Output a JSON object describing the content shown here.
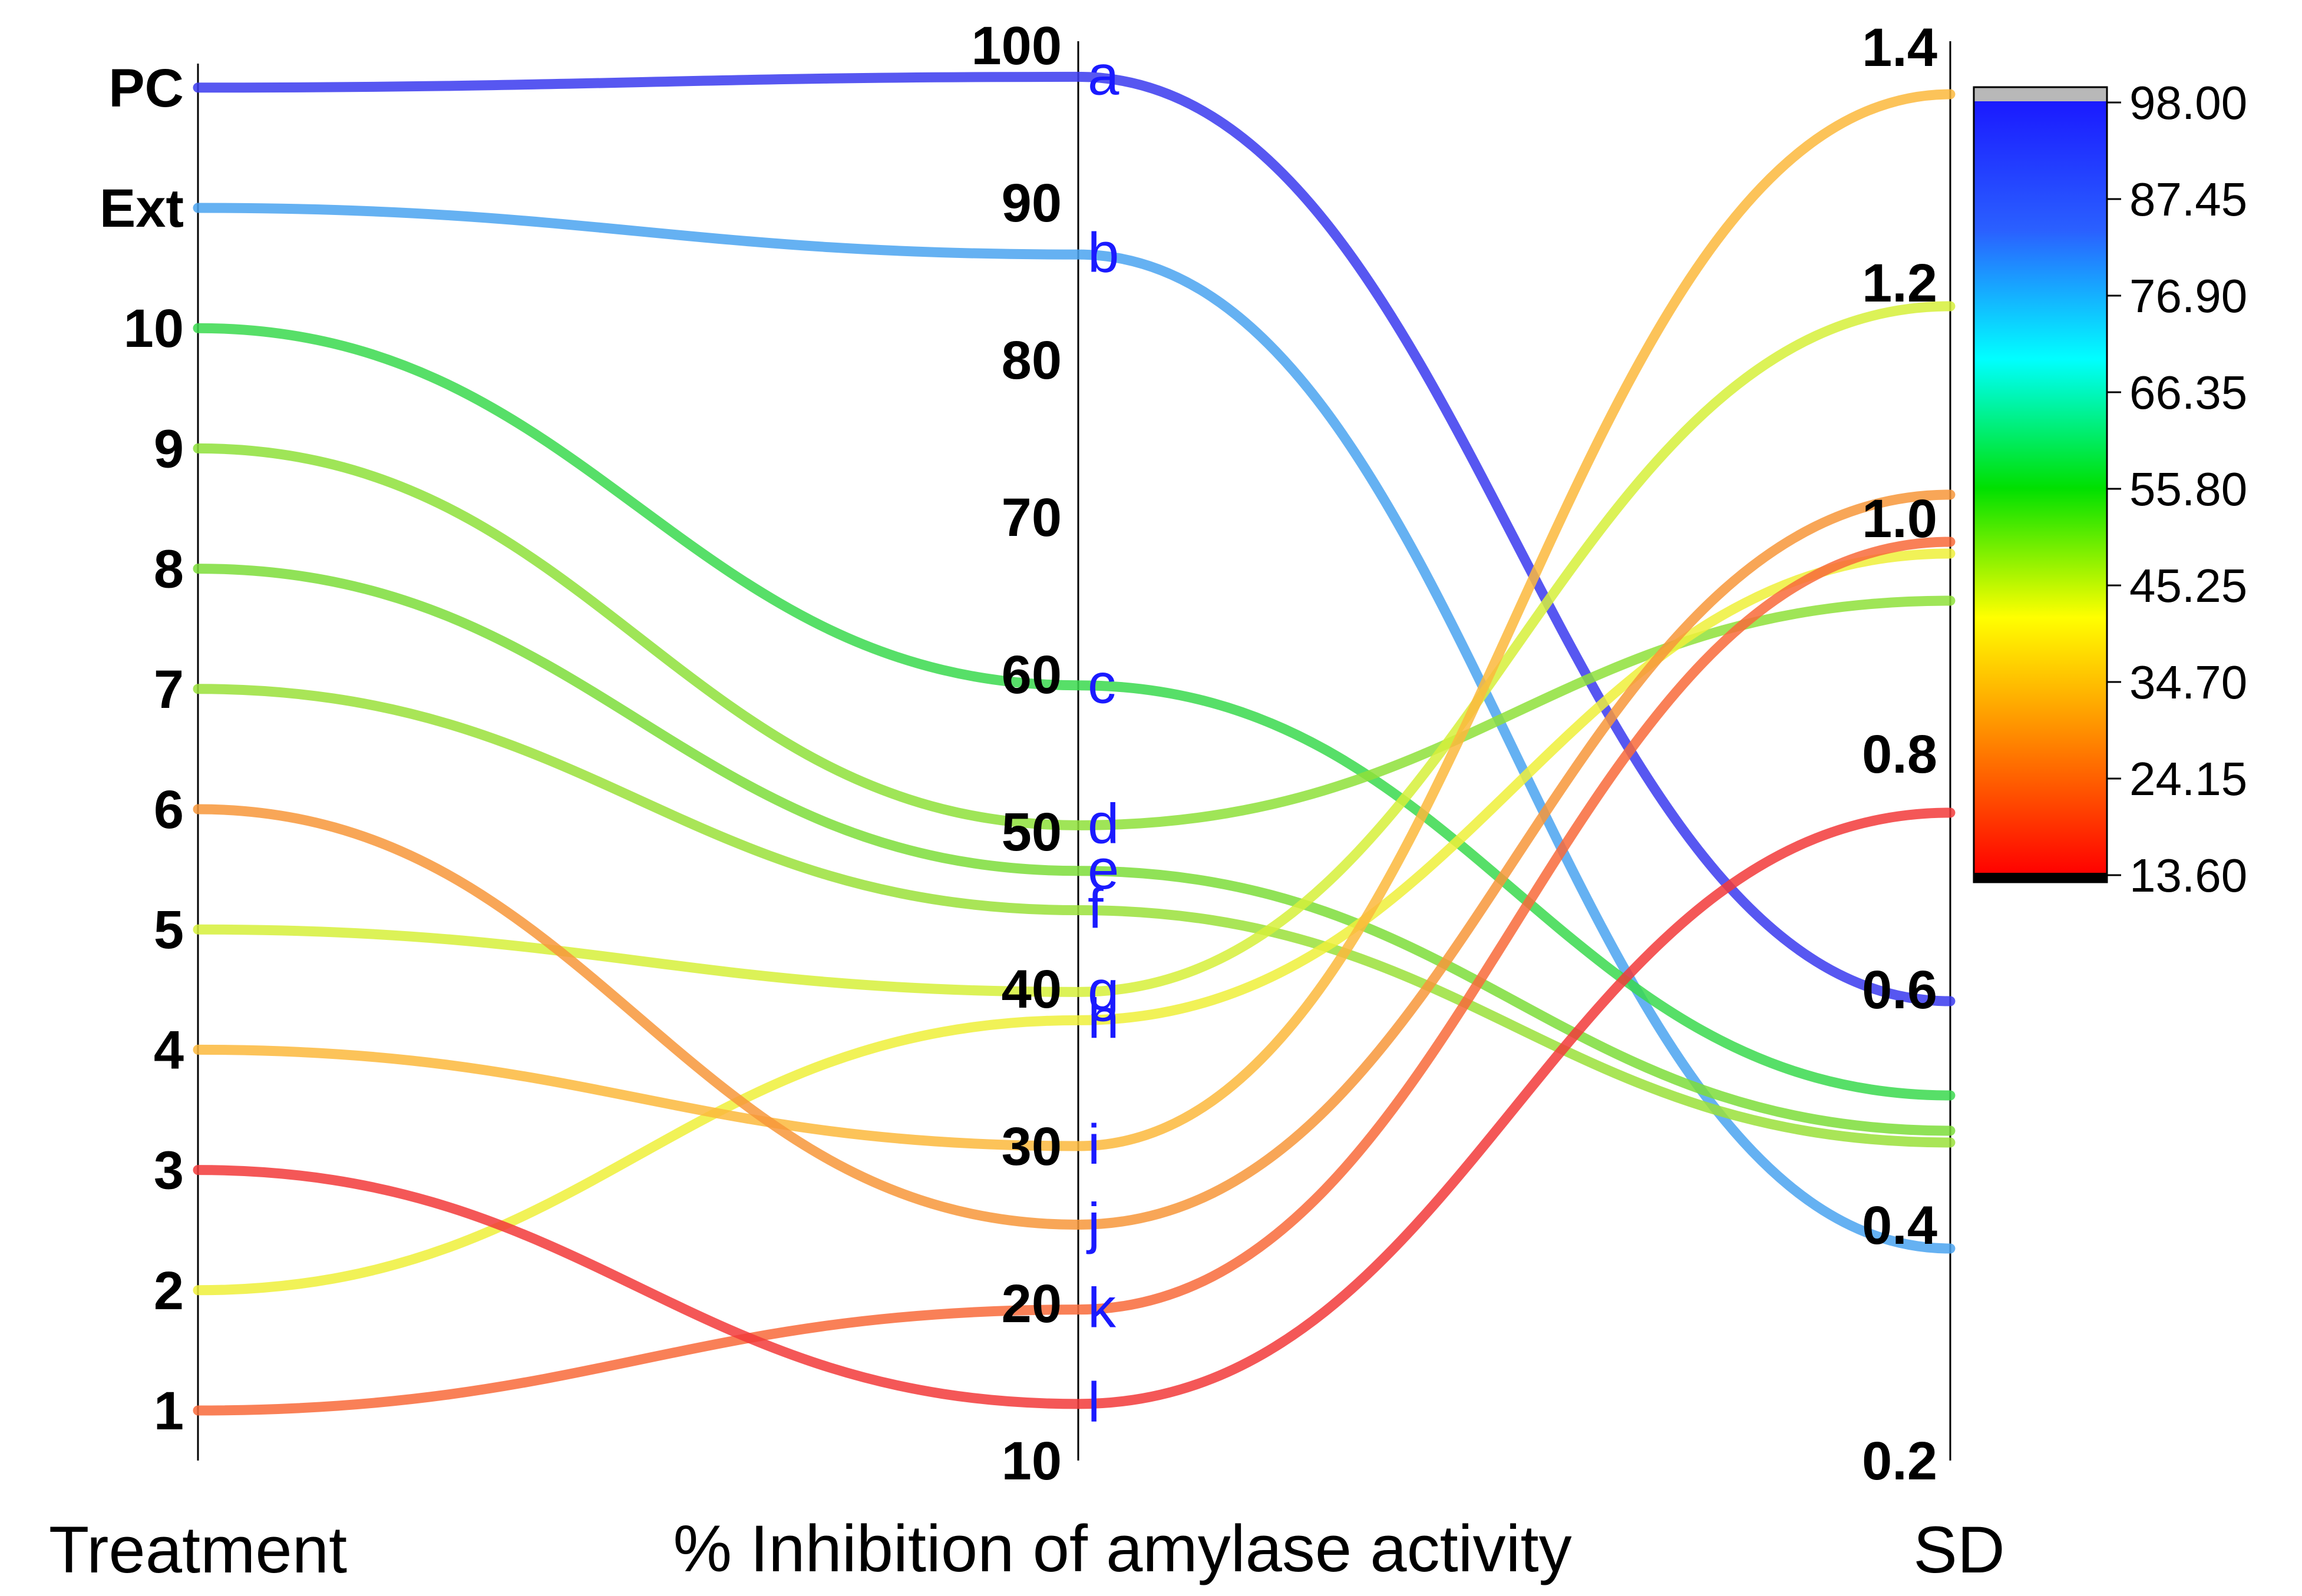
{
  "chart_data": {
    "type": "parallel-coordinates",
    "axes": [
      {
        "key": "treatment",
        "title": "Treatment",
        "type": "categorical",
        "ticks": [
          "1",
          "2",
          "3",
          "4",
          "5",
          "6",
          "7",
          "8",
          "9",
          "10",
          "Ext",
          "PC"
        ]
      },
      {
        "key": "inhibition",
        "title": "% Inhibition of amylase activity",
        "type": "linear",
        "range": [
          10,
          100
        ],
        "ticks": [
          10,
          20,
          30,
          40,
          50,
          60,
          70,
          80,
          90,
          100
        ]
      },
      {
        "key": "sd",
        "title": "SD",
        "type": "linear",
        "range": [
          0.2,
          1.4
        ],
        "ticks": [
          "0.2",
          "0.4",
          "0.6",
          "0.8",
          "1.0",
          "1.2",
          "1.4"
        ]
      }
    ],
    "series": [
      {
        "treatment": "PC",
        "inhibition": 98.0,
        "sd": 0.59,
        "sig": "a",
        "color": "#3a3aee"
      },
      {
        "treatment": "Ext",
        "inhibition": 86.7,
        "sd": 0.38,
        "sig": "b",
        "color": "#4aa3f0"
      },
      {
        "treatment": "10",
        "inhibition": 59.3,
        "sd": 0.51,
        "sig": "c",
        "color": "#3ad94e"
      },
      {
        "treatment": "9",
        "inhibition": 50.4,
        "sd": 0.93,
        "sig": "d",
        "color": "#8ee03a"
      },
      {
        "treatment": "8",
        "inhibition": 47.5,
        "sd": 0.48,
        "sig": "e",
        "color": "#7ddd3a"
      },
      {
        "treatment": "7",
        "inhibition": 45.0,
        "sd": 0.47,
        "sig": "f",
        "color": "#9ae03a"
      },
      {
        "treatment": "5",
        "inhibition": 39.8,
        "sd": 1.18,
        "sig": "g",
        "color": "#d6f03a"
      },
      {
        "treatment": "2",
        "inhibition": 38.0,
        "sd": 0.97,
        "sig": "h",
        "color": "#eef03a"
      },
      {
        "treatment": "4",
        "inhibition": 30.0,
        "sd": 1.36,
        "sig": "i",
        "color": "#fbb93c"
      },
      {
        "treatment": "6",
        "inhibition": 25.0,
        "sd": 1.02,
        "sig": "j",
        "color": "#f7963a"
      },
      {
        "treatment": "1",
        "inhibition": 19.6,
        "sd": 0.98,
        "sig": "k",
        "color": "#f86a3a"
      },
      {
        "treatment": "3",
        "inhibition": 13.6,
        "sd": 0.75,
        "sig": "l",
        "color": "#f23a3a"
      }
    ],
    "colorbar": {
      "variable": "% Inhibition of amylase activity",
      "min": 13.6,
      "max": 98.0,
      "tick_labels": [
        "98.00",
        "87.45",
        "76.90",
        "66.35",
        "55.80",
        "45.25",
        "34.70",
        "24.15",
        "13.60"
      ],
      "top_color": "#b8b8b8",
      "bottom_color": "#000000",
      "stops": [
        "#1a1aff",
        "#2a60ff",
        "#00ffff",
        "#00e000",
        "#ffff00",
        "#ff8000",
        "#ff0000"
      ]
    }
  }
}
